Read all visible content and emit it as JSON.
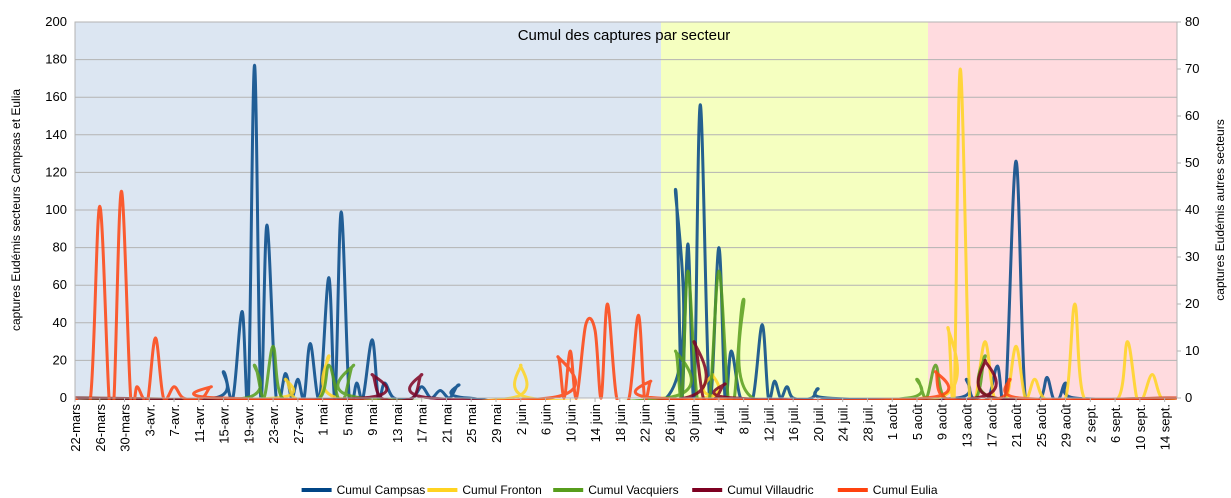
{
  "chart_data": {
    "type": "line",
    "title": "Cumul des captures par secteur",
    "ylabel": "captures Eudémis secteurs Campsas et Eulia",
    "y2label": "captures Eudémis autres secteurs",
    "xlim": [
      0,
      178
    ],
    "xticks": [
      {
        "value": 0,
        "label": "22-mars"
      },
      {
        "value": 4,
        "label": "26-mars"
      },
      {
        "value": 8,
        "label": "30-mars"
      },
      {
        "value": 12,
        "label": "3-avr."
      },
      {
        "value": 16,
        "label": "7-avr."
      },
      {
        "value": 20,
        "label": "11-avr."
      },
      {
        "value": 24,
        "label": "15-avr."
      },
      {
        "value": 28,
        "label": "19-avr."
      },
      {
        "value": 32,
        "label": "23-avr."
      },
      {
        "value": 36,
        "label": "27-avr."
      },
      {
        "value": 40,
        "label": "1 mai"
      },
      {
        "value": 44,
        "label": "5 mai"
      },
      {
        "value": 48,
        "label": "9 mai"
      },
      {
        "value": 52,
        "label": "13 mai"
      },
      {
        "value": 56,
        "label": "17 mai"
      },
      {
        "value": 60,
        "label": "21 mai"
      },
      {
        "value": 64,
        "label": "25 mai"
      },
      {
        "value": 68,
        "label": "29 mai"
      },
      {
        "value": 72,
        "label": "2 juin"
      },
      {
        "value": 76,
        "label": "6 juin"
      },
      {
        "value": 80,
        "label": "10 juin"
      },
      {
        "value": 84,
        "label": "14 juin"
      },
      {
        "value": 88,
        "label": "18 juin"
      },
      {
        "value": 92,
        "label": "22 juin"
      },
      {
        "value": 96,
        "label": "26 juin"
      },
      {
        "value": 100,
        "label": "30 juin"
      },
      {
        "value": 104,
        "label": "4 juil."
      },
      {
        "value": 108,
        "label": "8 juil."
      },
      {
        "value": 112,
        "label": "12 juil."
      },
      {
        "value": 116,
        "label": "16 juil."
      },
      {
        "value": 120,
        "label": "20 juil."
      },
      {
        "value": 124,
        "label": "24 juil."
      },
      {
        "value": 128,
        "label": "28 juil."
      },
      {
        "value": 132,
        "label": "1 août"
      },
      {
        "value": 136,
        "label": "5 août"
      },
      {
        "value": 140,
        "label": "9 août"
      },
      {
        "value": 144,
        "label": "13 août"
      },
      {
        "value": 148,
        "label": "17 août"
      },
      {
        "value": 152,
        "label": "21 août"
      },
      {
        "value": 156,
        "label": "25 août"
      },
      {
        "value": 160,
        "label": "29 août"
      },
      {
        "value": 164,
        "label": "2 sept."
      },
      {
        "value": 168,
        "label": "6 sept."
      },
      {
        "value": 172,
        "label": "10 sept."
      },
      {
        "value": 176,
        "label": "14 sept."
      }
    ],
    "ylim": [
      0,
      200
    ],
    "yticks": [
      0,
      20,
      40,
      60,
      80,
      100,
      120,
      140,
      160,
      180,
      200
    ],
    "y2lim": [
      0,
      80
    ],
    "y2ticks": [
      0,
      10,
      20,
      30,
      40,
      50,
      60,
      70,
      80
    ],
    "grid": true,
    "legend": "bottom",
    "series": [
      {
        "name": "Cumul Campsas",
        "color": "#004586",
        "axis": "y",
        "x": [
          0,
          22.5,
          24,
          25.5,
          27,
          28,
          29,
          30,
          31,
          32.5,
          34,
          35,
          36,
          37,
          38,
          39.5,
          41,
          42,
          43,
          44.3,
          45.5,
          46.5,
          48,
          49,
          50,
          51.5,
          54.5,
          56,
          57.5,
          59,
          60.5,
          62,
          63.5,
          95.5,
          97,
          98,
          99,
          100,
          101,
          102.5,
          104,
          105,
          106,
          107.5,
          109.5,
          111,
          112,
          113,
          114,
          115,
          116,
          119,
          120,
          121.5,
          142.5,
          144,
          145,
          147.5,
          149,
          150.3,
          152,
          153.5,
          156,
          157,
          158,
          159,
          160,
          161.5,
          178
        ],
        "values": [
          0,
          0,
          14,
          0,
          46,
          0,
          177,
          0,
          92,
          0,
          13,
          0,
          10,
          0,
          29,
          0,
          64,
          0,
          99,
          0,
          8,
          0,
          31,
          0,
          8,
          0,
          0,
          6,
          0,
          4,
          0,
          7,
          0,
          0,
          111,
          0,
          82,
          0,
          156,
          0,
          80,
          0,
          25,
          0,
          0,
          39,
          0,
          9,
          0,
          6,
          0,
          0,
          5,
          0,
          0,
          10,
          0,
          0,
          17,
          0,
          126,
          0,
          0,
          11,
          0,
          0,
          8,
          0,
          0
        ]
      },
      {
        "name": "Cumul Fronton",
        "color": "#ffd320",
        "axis": "y2",
        "x": [
          0,
          32.5,
          34,
          35.5,
          39.5,
          41,
          42.5,
          70.5,
          72,
          73.5,
          101.5,
          103,
          104.5,
          139.5,
          141,
          142,
          143,
          144.5,
          145.5,
          147,
          148.5,
          150.5,
          152,
          153.5,
          155,
          156.5,
          160,
          161.5,
          163,
          168.5,
          170,
          171.5,
          172.5,
          174,
          175.5,
          178
        ],
        "values": [
          0,
          0,
          4,
          0,
          0,
          9,
          0,
          0,
          7,
          0,
          0,
          5,
          0,
          0,
          15,
          0,
          70,
          0,
          0,
          12,
          0,
          0,
          11,
          0,
          4,
          0,
          0,
          20,
          0,
          0,
          12,
          0,
          0,
          5,
          0,
          0
        ]
      },
      {
        "name": "Cumul Vacquiers",
        "color": "#579d1c",
        "axis": "y2",
        "x": [
          0,
          27.5,
          29,
          30.5,
          32,
          33.5,
          39.5,
          41,
          42.5,
          43.5,
          45,
          46.5,
          95.5,
          97,
          98,
          99,
          100.5,
          102.5,
          104,
          105.5,
          106.5,
          108,
          109.5,
          134.5,
          136,
          137.5,
          139,
          140.5,
          145.5,
          147,
          148.5,
          178
        ],
        "values": [
          0,
          0,
          7,
          0,
          11,
          0,
          0,
          7,
          0,
          0,
          7,
          0,
          0,
          10,
          0,
          27,
          0,
          0,
          27,
          0,
          0,
          21,
          0,
          0,
          4,
          0,
          7,
          0,
          0,
          9,
          0,
          0
        ]
      },
      {
        "name": "Cumul Villaudric",
        "color": "#7e0021",
        "axis": "y2",
        "x": [
          0,
          46.5,
          48,
          49.5,
          54.5,
          56,
          57.5,
          98.5,
          100,
          101.5,
          103.5,
          105,
          106.5,
          145.5,
          147,
          148.5,
          178
        ],
        "values": [
          0,
          0,
          5,
          0,
          0,
          5,
          0,
          0,
          12,
          0,
          0,
          3,
          0,
          0,
          8,
          0,
          0
        ]
      },
      {
        "name": "Cumul Eulia",
        "color": "#ff420e",
        "axis": "y",
        "x": [
          0,
          2.5,
          4,
          5.5,
          6.3,
          7.5,
          9,
          10,
          11,
          11.8,
          13,
          14.3,
          16,
          17.5,
          20.5,
          22,
          23.5,
          76.5,
          78,
          79,
          80,
          81,
          82.5,
          84,
          85,
          86,
          87.5,
          89.5,
          91,
          92,
          93,
          94,
          137.5,
          139,
          140.5,
          149.5,
          151,
          152.5,
          178
        ],
        "values": [
          0,
          0,
          102,
          0,
          0,
          110,
          0,
          6,
          0,
          0,
          32,
          0,
          6,
          0,
          0,
          6,
          0,
          0,
          22,
          0,
          25,
          0,
          39,
          36,
          0,
          50,
          0,
          0,
          44,
          0,
          9,
          0,
          0,
          14,
          0,
          0,
          10,
          0,
          0
        ]
      }
    ]
  }
}
